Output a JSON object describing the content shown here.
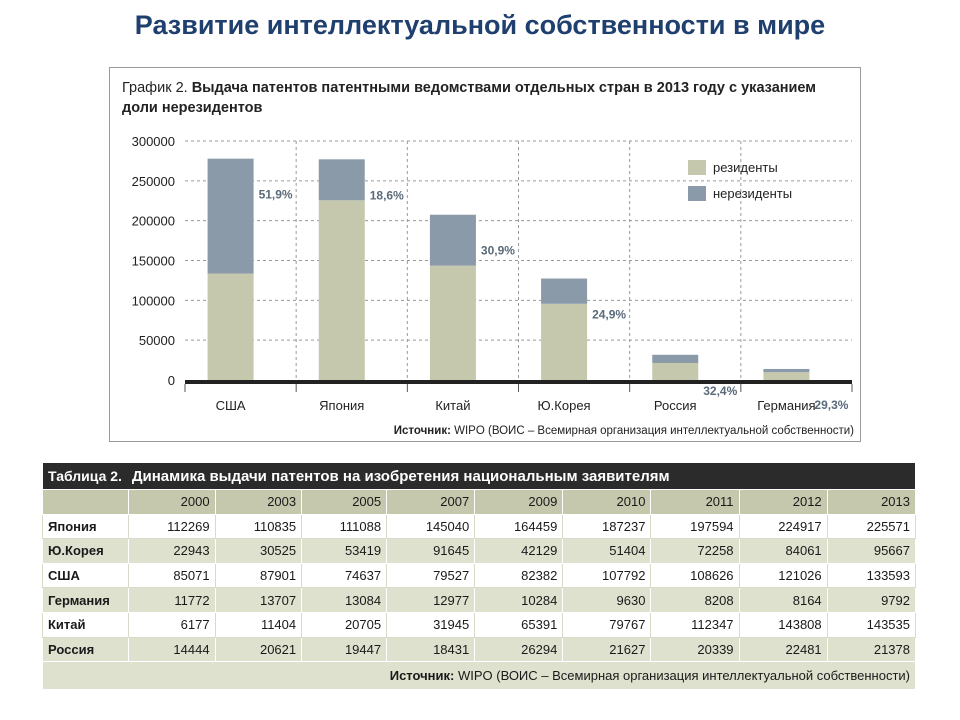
{
  "slide": {
    "title": "Развитие интеллектуальной собственности в мире"
  },
  "chart": {
    "heading_lead": "График 2.",
    "heading_main": "Выдача патентов патентными ведомствами отдельных стран в 2013 году с указанием доли нерезидентов",
    "source_label": "Источник:",
    "source_text": "WIPO (ВОИС – Всемирная организация интеллектуальной собственности)"
  },
  "chart_data": {
    "type": "bar",
    "stacked": true,
    "title": "График 2. Выдача патентов патентными ведомствами отдельных стран в 2013 году с указанием доли нерезидентов",
    "categories": [
      "США",
      "Япония",
      "Китай",
      "Ю.Корея",
      "Россия",
      "Германия"
    ],
    "series": [
      {
        "name": "резиденты",
        "color": "#c5c8ad",
        "values": [
          133593,
          225571,
          143535,
          95667,
          21378,
          9792
        ]
      },
      {
        "name": "нерезиденты",
        "color": "#8b9aa8",
        "values": [
          144242,
          51428,
          63910,
          31718,
          10249,
          4062
        ]
      }
    ],
    "data_labels": [
      "51,9%",
      "18,6%",
      "30,9%",
      "24,9%",
      "32,4%",
      "29,3%"
    ],
    "y_ticks": [
      "300000",
      "250000",
      "200000",
      "150000",
      "100000",
      "50000",
      "0"
    ],
    "ylim": [
      0,
      300000
    ],
    "grid": true,
    "legend_position": "top-right"
  },
  "table": {
    "title_lead": "Таблица 2.",
    "title_main": "Динамика выдачи патентов на изобретения национальным заявителям",
    "years": [
      "2000",
      "2003",
      "2005",
      "2007",
      "2009",
      "2010",
      "2011",
      "2012",
      "2013"
    ],
    "rows": [
      {
        "country": "Япония",
        "values": [
          "112269",
          "110835",
          "111088",
          "145040",
          "164459",
          "187237",
          "197594",
          "224917",
          "225571"
        ]
      },
      {
        "country": "Ю.Корея",
        "values": [
          "22943",
          "30525",
          "53419",
          "91645",
          "42129",
          "51404",
          "72258",
          "84061",
          "95667"
        ]
      },
      {
        "country": "США",
        "values": [
          "85071",
          "87901",
          "74637",
          "79527",
          "82382",
          "107792",
          "108626",
          "121026",
          "133593"
        ]
      },
      {
        "country": "Германия",
        "values": [
          "11772",
          "13707",
          "13084",
          "12977",
          "10284",
          "9630",
          "8208",
          "8164",
          "9792"
        ]
      },
      {
        "country": "Китай",
        "values": [
          "6177",
          "11404",
          "20705",
          "31945",
          "65391",
          "79767",
          "112347",
          "143808",
          "143535"
        ]
      },
      {
        "country": "Россия",
        "values": [
          "14444",
          "20621",
          "19447",
          "18431",
          "26294",
          "21627",
          "20339",
          "22481",
          "21378"
        ]
      }
    ],
    "source_label": "Источник:",
    "source_text": "WIPO (ВОИС – Всемирная организация интеллектуальной собственности)"
  }
}
